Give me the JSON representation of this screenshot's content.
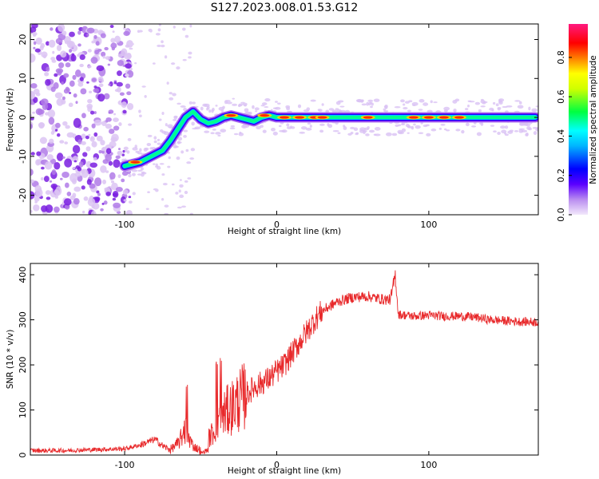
{
  "title": "S127.2023.008.01.53.G12",
  "chart_data": [
    {
      "type": "heatmap",
      "xlabel": "Height of straight line (km)",
      "ylabel": "Frequency (Hz)",
      "xlim": [
        -162,
        172
      ],
      "ylim": [
        -25,
        24
      ],
      "xticks": [
        -100,
        0,
        100
      ],
      "yticks": [
        -20,
        -10,
        0,
        10,
        20
      ],
      "colorbar": {
        "label": "Normalized spectral amplitude",
        "range": [
          0.0,
          0.97
        ],
        "ticks": [
          "0.0",
          "0.2",
          "0.4",
          "0.6",
          "0.8"
        ],
        "colors": [
          "#e9d6f5",
          "#7b00ff",
          "#0000ff",
          "#00ffff",
          "#00ff00",
          "#ffff00",
          "#ff8000",
          "#ff0000",
          "#ff1493"
        ]
      },
      "ridge": {
        "x": [
          -100,
          -95,
          -90,
          -85,
          -80,
          -75,
          -70,
          -65,
          -60,
          -55,
          -50,
          -45,
          -40,
          -35,
          -30,
          -25,
          -20,
          -15,
          -10,
          -5,
          0,
          20,
          50,
          100,
          170
        ],
        "y": [
          -12.5,
          -12,
          -11.5,
          -10.5,
          -9.5,
          -8.5,
          -6,
          -3,
          0,
          1.5,
          -0.5,
          -1.5,
          -1,
          0,
          0.5,
          0,
          -0.5,
          -1,
          0,
          0.5,
          0,
          0,
          0,
          0,
          0
        ]
      }
    },
    {
      "type": "line",
      "xlabel": "Height of straight line (km)",
      "ylabel": "SNR (10 * v/v)",
      "xlim": [
        -162,
        172
      ],
      "ylim": [
        0,
        425
      ],
      "xticks": [
        -100,
        0,
        100
      ],
      "yticks": [
        0,
        100,
        200,
        300,
        400
      ],
      "color": "#e8292b",
      "grid": false,
      "x": [
        -162,
        -140,
        -120,
        -100,
        -90,
        -80,
        -75,
        -70,
        -65,
        -60,
        -55,
        -50,
        -45,
        -40,
        -35,
        -30,
        -25,
        -20,
        -15,
        -10,
        -5,
        0,
        5,
        10,
        15,
        20,
        25,
        30,
        40,
        50,
        60,
        70,
        75,
        78,
        80,
        85,
        90,
        100,
        110,
        120,
        130,
        140,
        150,
        160,
        172
      ],
      "y": [
        10,
        10,
        12,
        14,
        22,
        35,
        20,
        12,
        25,
        55,
        20,
        10,
        35,
        60,
        90,
        105,
        120,
        135,
        150,
        160,
        170,
        185,
        200,
        225,
        250,
        275,
        300,
        320,
        340,
        350,
        352,
        345,
        345,
        400,
        312,
        310,
        308,
        310,
        308,
        308,
        306,
        300,
        298,
        296,
        295
      ]
    }
  ]
}
